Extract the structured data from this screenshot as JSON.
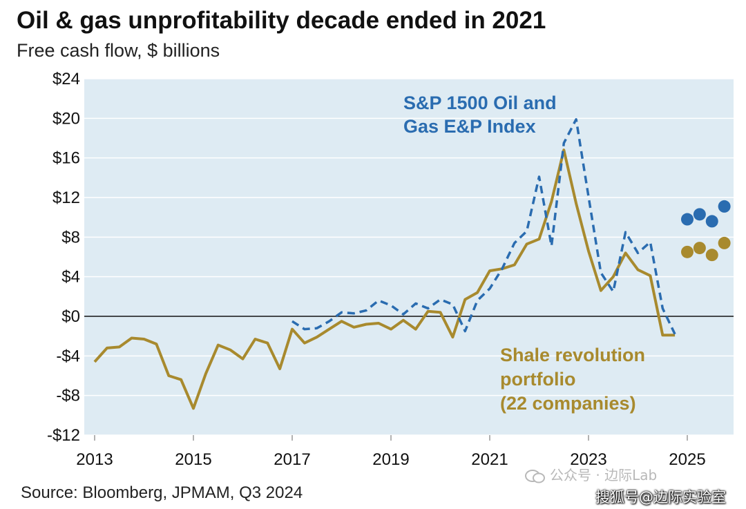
{
  "title": "Oil & gas unprofitability decade ended in 2021",
  "subtitle": "Free cash flow, $ billions",
  "source": "Source: Bloomberg, JPMAM, Q3 2024",
  "watermarks": {
    "line1": "公众号 · 边际Lab",
    "line2": "搜狐号@边际实验室"
  },
  "colors": {
    "plot_bg": "#deebf3",
    "gold": "#a88a2e",
    "blue": "#2a6cb0",
    "grid": "#ffffff",
    "zero_line": "#111111"
  },
  "chart_data": {
    "type": "line",
    "title": "Oil & gas unprofitability decade ended in 2021",
    "subtitle": "Free cash flow, $ billions",
    "xlim": [
      2013,
      2026
    ],
    "ylim": [
      -12,
      24
    ],
    "x_ticks": [
      2013,
      2015,
      2017,
      2019,
      2021,
      2023,
      2025
    ],
    "x_tick_labels": [
      "2013",
      "2015",
      "2017",
      "2019",
      "2021",
      "2023",
      "2025"
    ],
    "y_ticks": [
      -12,
      -8,
      -4,
      0,
      4,
      8,
      12,
      16,
      20,
      24
    ],
    "y_tick_labels": [
      "-$12",
      "-$8",
      "-$4",
      "$0",
      "$4",
      "$8",
      "$12",
      "$16",
      "$20",
      "$24"
    ],
    "grid": true,
    "series": [
      {
        "name": "S&P 1500 Oil and Gas E&P Index",
        "style": "dashed",
        "color": "#2a6cb0",
        "x": [
          2017.0,
          2017.25,
          2017.5,
          2017.75,
          2018.0,
          2018.25,
          2018.5,
          2018.75,
          2019.0,
          2019.25,
          2019.5,
          2019.75,
          2020.0,
          2020.25,
          2020.5,
          2020.75,
          2021.0,
          2021.25,
          2021.5,
          2021.75,
          2022.0,
          2022.25,
          2022.5,
          2022.75,
          2023.0,
          2023.25,
          2023.5,
          2023.75,
          2024.0,
          2024.25,
          2024.5,
          2024.75
        ],
        "y": [
          -0.5,
          -1.3,
          -1.2,
          -0.5,
          0.4,
          0.3,
          0.6,
          1.6,
          1.1,
          0.2,
          1.3,
          0.8,
          1.7,
          1.2,
          -1.5,
          1.6,
          2.8,
          4.8,
          7.4,
          8.6,
          14.1,
          7.1,
          17.5,
          19.9,
          12.1,
          4.4,
          2.5,
          8.5,
          6.4,
          7.5,
          0.8,
          -1.8
        ]
      },
      {
        "name": "Shale revolution portfolio (22 companies)",
        "style": "solid",
        "color": "#a88a2e",
        "x": [
          2013.0,
          2013.25,
          2013.5,
          2013.75,
          2014.0,
          2014.25,
          2014.5,
          2014.75,
          2015.0,
          2015.25,
          2015.5,
          2015.75,
          2016.0,
          2016.25,
          2016.5,
          2016.75,
          2017.0,
          2017.25,
          2017.5,
          2017.75,
          2018.0,
          2018.25,
          2018.5,
          2018.75,
          2019.0,
          2019.25,
          2019.5,
          2019.75,
          2020.0,
          2020.25,
          2020.5,
          2020.75,
          2021.0,
          2021.25,
          2021.5,
          2021.75,
          2022.0,
          2022.25,
          2022.5,
          2022.75,
          2023.0,
          2023.25,
          2023.5,
          2023.75,
          2024.0,
          2024.25,
          2024.5,
          2024.75
        ],
        "y": [
          -4.6,
          -3.2,
          -3.1,
          -2.2,
          -2.3,
          -2.8,
          -6.0,
          -6.4,
          -9.3,
          -5.8,
          -2.9,
          -3.4,
          -4.3,
          -2.3,
          -2.7,
          -5.3,
          -1.3,
          -2.7,
          -2.1,
          -1.3,
          -0.5,
          -1.1,
          -0.8,
          -0.7,
          -1.3,
          -0.4,
          -1.3,
          0.5,
          0.4,
          -2.1,
          1.7,
          2.4,
          4.6,
          4.8,
          5.2,
          7.3,
          7.8,
          11.6,
          16.8,
          11.4,
          6.6,
          2.6,
          4.0,
          6.4,
          4.7,
          4.1,
          -1.9,
          -1.9
        ]
      },
      {
        "name": "S&P 1500 Oil and Gas E&P Index (forecast)",
        "style": "markers",
        "color": "#2a6cb0",
        "x": [
          2025.0,
          2025.25,
          2025.5,
          2025.75
        ],
        "y": [
          9.8,
          10.3,
          9.6,
          11.1
        ]
      },
      {
        "name": "Shale revolution portfolio (forecast)",
        "style": "markers",
        "color": "#a88a2e",
        "x": [
          2025.0,
          2025.25,
          2025.5,
          2025.75
        ],
        "y": [
          6.5,
          6.9,
          6.2,
          7.4
        ]
      }
    ],
    "annotations": [
      {
        "text_lines": [
          "S&P 1500 Oil and",
          "Gas E&P Index"
        ],
        "series": "S&P 1500 Oil and Gas E&P Index"
      },
      {
        "text_lines": [
          "Shale revolution",
          "portfolio",
          "(22 companies)"
        ],
        "series": "Shale revolution portfolio (22 companies)"
      }
    ]
  }
}
